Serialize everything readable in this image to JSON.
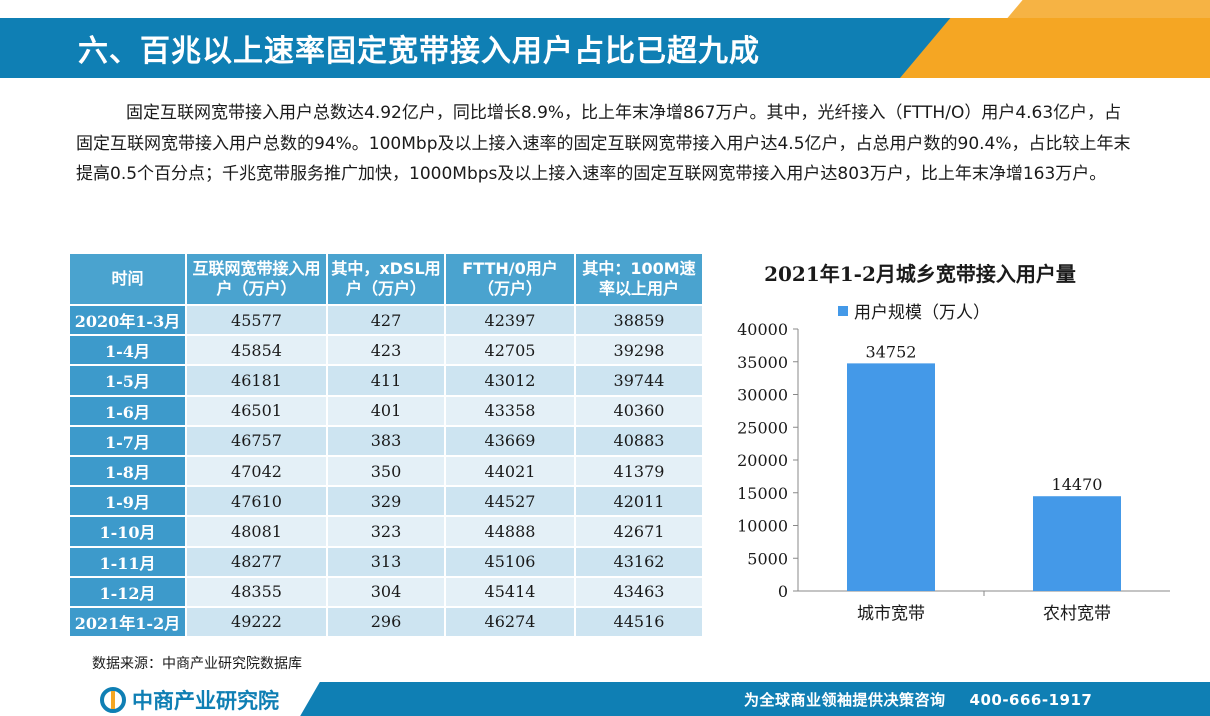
{
  "header": {
    "title": "六、百兆以上速率固定宽带接入用户占比已超九成"
  },
  "paragraph": "固定互联网宽带接入用户总数达4.92亿户，同比增长8.9%，比上年末净增867万户。其中，光纤接入（FTTH/O）用户4.63亿户，占固定互联网宽带接入用户总数的94%。100Mbp及以上接入速率的固定互联网宽带接入用户达4.5亿户，占总用户数的90.4%，占比较上年末提高0.5个百分点；千兆宽带服务推广加快，1000Mbps及以上接入速率的固定互联网宽带接入用户达803万户，比上年末净增163万户。",
  "table": {
    "headers": [
      "时间",
      "互联网宽带接入用户（万户）",
      "其中，xDSL用户（万户）",
      "FTTH/0用户（万户）",
      "其中：100M速率以上用户"
    ],
    "rows": [
      [
        "2020年1-3月",
        "45577",
        "427",
        "42397",
        "38859"
      ],
      [
        "1-4月",
        "45854",
        "423",
        "42705",
        "39298"
      ],
      [
        "1-5月",
        "46181",
        "411",
        "43012",
        "39744"
      ],
      [
        "1-6月",
        "46501",
        "401",
        "43358",
        "40360"
      ],
      [
        "1-7月",
        "46757",
        "383",
        "43669",
        "40883"
      ],
      [
        "1-8月",
        "47042",
        "350",
        "44021",
        "41379"
      ],
      [
        "1-9月",
        "47610",
        "329",
        "44527",
        "42011"
      ],
      [
        "1-10月",
        "48081",
        "323",
        "44888",
        "42671"
      ],
      [
        "1-11月",
        "48277",
        "313",
        "45106",
        "43162"
      ],
      [
        "1-12月",
        "48355",
        "304",
        "45414",
        "43463"
      ],
      [
        "2021年1-2月",
        "49222",
        "296",
        "46274",
        "44516"
      ]
    ]
  },
  "chart_data": {
    "type": "bar",
    "title": "2021年1-2月城乡宽带接入用户量",
    "categories": [
      "城市宽带",
      "农村宽带"
    ],
    "series": [
      {
        "name": "用户规模（万人）",
        "values": [
          34752,
          14470
        ]
      }
    ],
    "ylim": [
      0,
      40000
    ],
    "yticks": [
      0,
      5000,
      10000,
      15000,
      20000,
      25000,
      30000,
      35000,
      40000
    ],
    "legend_position": "top",
    "grid": false,
    "bar_color": "#4499e8"
  },
  "source": "数据来源：中商产业研究院数据库",
  "footer": {
    "logo_text": "中商产业研究院",
    "slogan": "为全球商业领袖提供决策咨询",
    "phone": "400-666-1917"
  },
  "colors": {
    "primary": "#0f7fb4",
    "accent": "#f5a623",
    "table_header": "#4aa3cf"
  }
}
